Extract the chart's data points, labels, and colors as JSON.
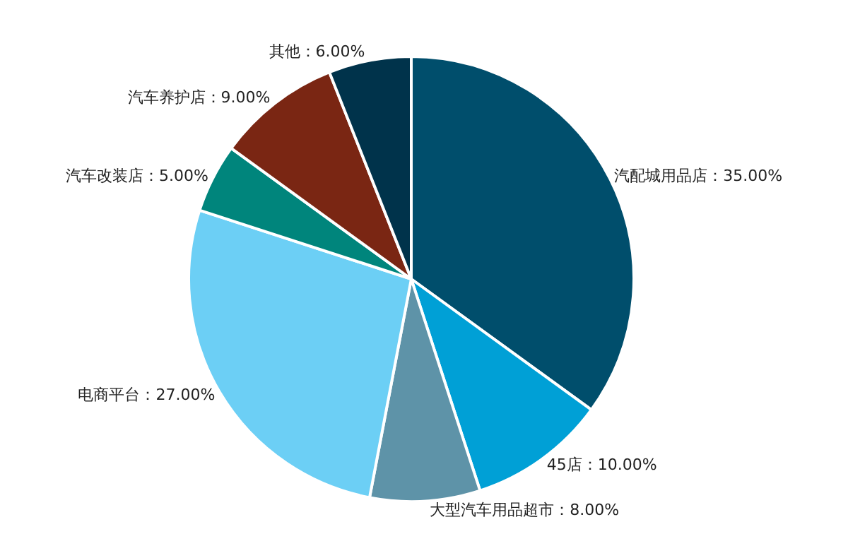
{
  "chart_data": {
    "type": "pie",
    "categories": [
      "汽配城用品店",
      "45店",
      "大型汽车用品超市",
      "电商平台",
      "汽车改装店",
      "汽车养护店",
      "其他"
    ],
    "values": [
      35,
      10,
      8,
      27,
      5,
      9,
      6
    ],
    "value_labels": [
      "35.00%",
      "10.00%",
      "8.00%",
      "27.00%",
      "5.00%",
      "9.00%",
      "6.00%"
    ],
    "colors": [
      "#004e6c",
      "#00a0d6",
      "#5e93a8",
      "#6ccff5",
      "#00857c",
      "#7a2613",
      "#00334b"
    ],
    "legend": false
  }
}
